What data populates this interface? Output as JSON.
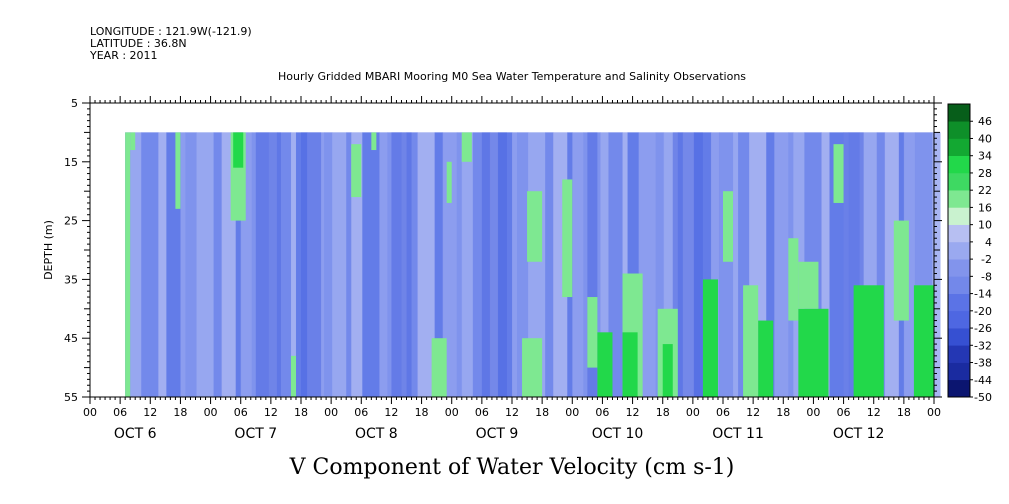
{
  "header": {
    "longitude": "LONGITUDE : 121.9W(-121.9)",
    "latitude": "LATITUDE : 36.8N",
    "year": "YEAR : 2011",
    "title": "Hourly Gridded MBARI Mooring M0 Sea Water Temperature and Salinity Observations"
  },
  "chart_data": {
    "type": "heatmap",
    "title": "Hourly Gridded MBARI Mooring M0 Sea Water Temperature and Salinity Observations",
    "variable_label": "V Component of Water Velocity (cm s-1)",
    "ylabel": "DEPTH (m)",
    "y_range": [
      5,
      55
    ],
    "y_inverted": true,
    "y_ticks": [
      5,
      15,
      25,
      35,
      45,
      55
    ],
    "x_range_hours": [
      0,
      168
    ],
    "data_start_hour": 7,
    "data_top_depth": 10,
    "x_hour_tick_labels": [
      "00",
      "06",
      "12",
      "18",
      "00",
      "06",
      "12",
      "18",
      "00",
      "06",
      "12",
      "18",
      "00",
      "06",
      "12",
      "18",
      "00",
      "06",
      "12",
      "18",
      "00",
      "06",
      "12",
      "18",
      "00",
      "06",
      "12",
      "18",
      "00"
    ],
    "day_labels": [
      "OCT  6",
      "OCT  7",
      "OCT  8",
      "OCT  9",
      "OCT 10",
      "OCT 11",
      "OCT 12"
    ],
    "colorbar": {
      "labels": [
        "46",
        "40",
        "34",
        "28",
        "22",
        "16",
        "10",
        "4",
        "-2",
        "-8",
        "-14",
        "-20",
        "-26",
        "-32",
        "-38",
        "-44",
        "-50"
      ],
      "min": -50,
      "max": 52,
      "step": 6
    },
    "regions": [
      {
        "hour_from": 7,
        "hour_to": 8,
        "depth_from": 10,
        "depth_to": 55,
        "level": 4
      },
      {
        "hour_from": 8,
        "hour_to": 9,
        "depth_from": 10,
        "depth_to": 13,
        "level": 4
      },
      {
        "hour_from": 17,
        "hour_to": 18,
        "depth_from": 10,
        "depth_to": 23,
        "level": 4
      },
      {
        "hour_from": 28,
        "hour_to": 31,
        "depth_from": 10,
        "depth_to": 25,
        "level": 4
      },
      {
        "hour_from": 28.5,
        "hour_to": 30.5,
        "depth_from": 10,
        "depth_to": 16,
        "level": 10
      },
      {
        "hour_from": 40,
        "hour_to": 41,
        "depth_from": 48,
        "depth_to": 55,
        "level": 4
      },
      {
        "hour_from": 52,
        "hour_to": 54,
        "depth_from": 12,
        "depth_to": 21,
        "level": 4
      },
      {
        "hour_from": 56,
        "hour_to": 57,
        "depth_from": 10,
        "depth_to": 13,
        "level": 4
      },
      {
        "hour_from": 68,
        "hour_to": 71,
        "depth_from": 45,
        "depth_to": 55,
        "level": 4
      },
      {
        "hour_from": 71,
        "hour_to": 72,
        "depth_from": 15,
        "depth_to": 22,
        "level": 4
      },
      {
        "hour_from": 74,
        "hour_to": 76,
        "depth_from": 10,
        "depth_to": 15,
        "level": 4
      },
      {
        "hour_from": 87,
        "hour_to": 90,
        "depth_from": 20,
        "depth_to": 32,
        "level": 4
      },
      {
        "hour_from": 86,
        "hour_to": 90,
        "depth_from": 45,
        "depth_to": 55,
        "level": 4
      },
      {
        "hour_from": 94,
        "hour_to": 96,
        "depth_from": 18,
        "depth_to": 38,
        "level": 4
      },
      {
        "hour_from": 99,
        "hour_to": 101,
        "depth_from": 38,
        "depth_to": 50,
        "level": 4
      },
      {
        "hour_from": 101,
        "hour_to": 104,
        "depth_from": 44,
        "depth_to": 55,
        "level": 10
      },
      {
        "hour_from": 106,
        "hour_to": 110,
        "depth_from": 34,
        "depth_to": 55,
        "level": 4
      },
      {
        "hour_from": 106,
        "hour_to": 109,
        "depth_from": 44,
        "depth_to": 55,
        "level": 10
      },
      {
        "hour_from": 113,
        "hour_to": 117,
        "depth_from": 40,
        "depth_to": 55,
        "level": 4
      },
      {
        "hour_from": 114,
        "hour_to": 116,
        "depth_from": 46,
        "depth_to": 55,
        "level": 10
      },
      {
        "hour_from": 122,
        "hour_to": 125,
        "depth_from": 35,
        "depth_to": 55,
        "level": 10
      },
      {
        "hour_from": 126,
        "hour_to": 128,
        "depth_from": 20,
        "depth_to": 32,
        "level": 4
      },
      {
        "hour_from": 130,
        "hour_to": 133,
        "depth_from": 36,
        "depth_to": 55,
        "level": 4
      },
      {
        "hour_from": 133,
        "hour_to": 136,
        "depth_from": 42,
        "depth_to": 55,
        "level": 10
      },
      {
        "hour_from": 139,
        "hour_to": 141,
        "depth_from": 28,
        "depth_to": 42,
        "level": 4
      },
      {
        "hour_from": 141,
        "hour_to": 147,
        "depth_from": 40,
        "depth_to": 55,
        "level": 10
      },
      {
        "hour_from": 141,
        "hour_to": 145,
        "depth_from": 32,
        "depth_to": 40,
        "level": 4
      },
      {
        "hour_from": 152,
        "hour_to": 158,
        "depth_from": 36,
        "depth_to": 55,
        "level": 10
      },
      {
        "hour_from": 160,
        "hour_to": 163,
        "depth_from": 25,
        "depth_to": 42,
        "level": 4
      },
      {
        "hour_from": 164,
        "hour_to": 168,
        "depth_from": 36,
        "depth_to": 55,
        "level": 10
      },
      {
        "hour_from": 148,
        "hour_to": 150,
        "depth_from": 12,
        "depth_to": 22,
        "level": 4
      }
    ]
  }
}
